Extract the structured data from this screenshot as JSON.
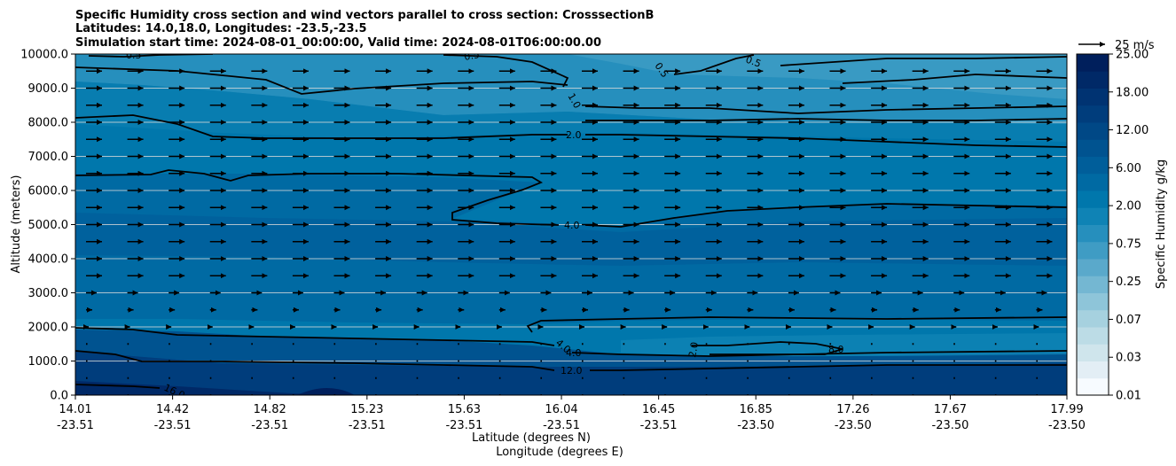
{
  "chart_data": {
    "type": "contourf",
    "title_lines": [
      "Specific Humidity cross section and wind vectors parallel to cross section: CrosssectionB",
      "Latitudes: 14.0,18.0, Longitudes: -23.5,-23.5",
      "Simulation start time: 2024-08-01_00:00:00, Valid time: 2024-08-01T06:00:00.00"
    ],
    "ylabel": "Altitude (meters)",
    "xlabel_lines": [
      "Latitude (degrees N)",
      "Longitude (degrees E)"
    ],
    "ylim": [
      0,
      10000
    ],
    "y_ticks": [
      "0.0",
      "1000.0",
      "2000.0",
      "3000.0",
      "4000.0",
      "5000.0",
      "6000.0",
      "7000.0",
      "8000.0",
      "9000.0",
      "10000.0"
    ],
    "x_ticks": [
      {
        "lat": "14.01",
        "lon": "-23.51"
      },
      {
        "lat": "14.42",
        "lon": "-23.51"
      },
      {
        "lat": "14.82",
        "lon": "-23.51"
      },
      {
        "lat": "15.23",
        "lon": "-23.51"
      },
      {
        "lat": "15.63",
        "lon": "-23.51"
      },
      {
        "lat": "16.04",
        "lon": "-23.51"
      },
      {
        "lat": "16.45",
        "lon": "-23.51"
      },
      {
        "lat": "16.85",
        "lon": "-23.50"
      },
      {
        "lat": "17.26",
        "lon": "-23.50"
      },
      {
        "lat": "17.67",
        "lon": "-23.50"
      },
      {
        "lat": "17.99",
        "lon": "-23.50"
      }
    ],
    "grid": "horizontal",
    "colorbar": {
      "label": "Specific Humidity g/kg",
      "tick_labels": [
        "0.01",
        "0.03",
        "0.07",
        "0.25",
        "0.75",
        "2.00",
        "6.00",
        "12.00",
        "18.00",
        "25.00"
      ],
      "colors": [
        "#f7fbff",
        "#e3eef5",
        "#cfe5ec",
        "#bcdce6",
        "#a6d1df",
        "#8ec5d9",
        "#74b7d2",
        "#5aa9cb",
        "#3f9cc4",
        "#268fbd",
        "#0f83b5",
        "#0077ac",
        "#006aa3",
        "#005e9a",
        "#005390",
        "#004886",
        "#003d7c",
        "#003372",
        "#002967",
        "#001f5c"
      ]
    },
    "quiver_key": {
      "label": "25 m/s"
    },
    "contour_labels": [
      "0.5",
      "0.5",
      "0.5",
      "0.5",
      "1.0",
      "2.0",
      "2.0",
      "4.0",
      "4.0",
      "4.0",
      "8.0",
      "12.0",
      "16.0"
    ]
  }
}
